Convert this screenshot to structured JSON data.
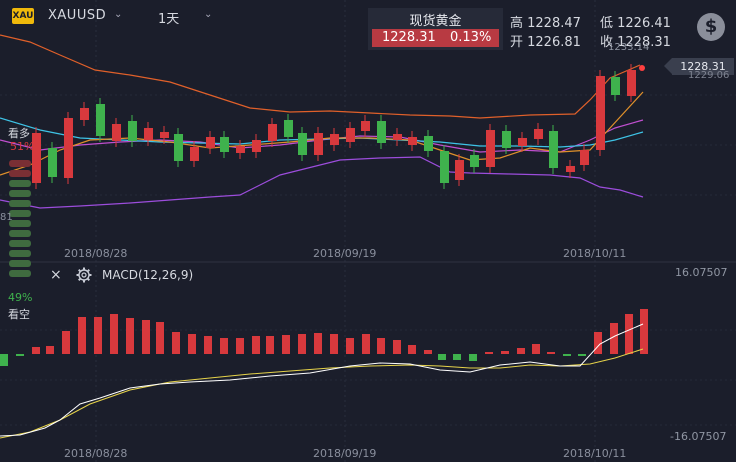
{
  "header": {
    "logo_text": "XAU",
    "symbol": "XAUUSD",
    "symbol_caret": "⌄",
    "timeframe": "1天",
    "timeframe_caret": "⌄",
    "quote_name": "现货黄金",
    "last_price": "1228.31",
    "change_pct": "0.13%",
    "high_label": "高 1228.47",
    "low_label": "低 1226.41",
    "open_label": "开 1226.81",
    "close_label": "收 1228.31",
    "currency_icon": "$"
  },
  "main_chart": {
    "price_tag": "1228.31",
    "max_label": "1233.14",
    "right_label": "1229.06",
    "bull_label": "看多",
    "bull_pct": "51%",
    "bear_pct": "49%",
    "bear_label": "看空",
    "side_value": "81",
    "colors": {
      "up": "#d8393d",
      "down": "#3fb24d",
      "upper_band": "#e0602a",
      "lower_band": "#9c4ddc",
      "mid_band": "#c04fcf",
      "ma_cyan": "#3ec3e6",
      "ma_orange": "#e0902a"
    }
  },
  "dates": [
    "2018/08/28",
    "2018/09/19",
    "2018/10/11"
  ],
  "macd": {
    "close_icon": "×",
    "settings_icon": "gear-icon",
    "indicator_label": "MACD(12,26,9)",
    "top_value": "16.07507",
    "bottom_value": "-16.07507"
  }
}
